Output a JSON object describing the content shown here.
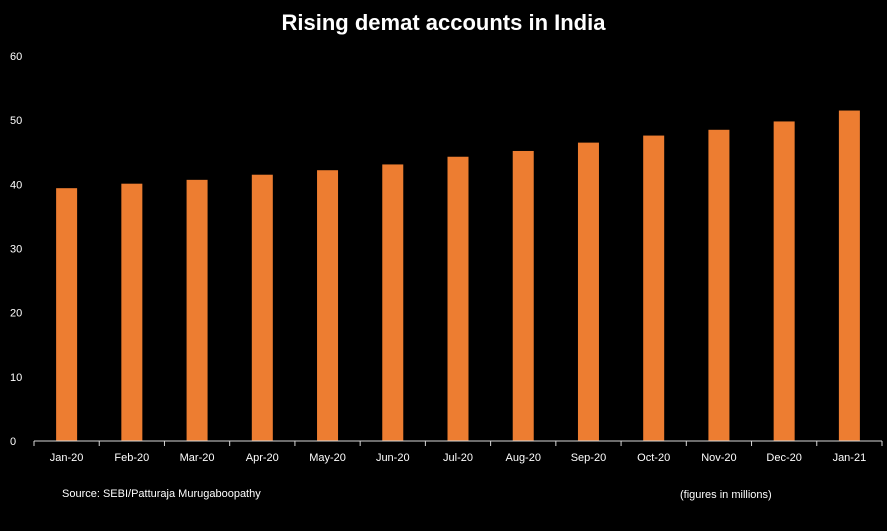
{
  "chart_data": {
    "type": "bar",
    "title": "Rising demat accounts in India",
    "categories": [
      "Jan-20",
      "Feb-20",
      "Mar-20",
      "Apr-20",
      "May-20",
      "Jun-20",
      "Jul-20",
      "Aug-20",
      "Sep-20",
      "Oct-20",
      "Nov-20",
      "Dec-20",
      "Jan-21"
    ],
    "values": [
      39.4,
      40.1,
      40.7,
      41.5,
      42.2,
      43.1,
      44.3,
      45.2,
      46.5,
      47.6,
      48.5,
      49.8,
      51.5
    ],
    "ylim": [
      0,
      60
    ],
    "yticks": [
      0,
      10,
      20,
      30,
      40,
      50,
      60
    ],
    "grid": false,
    "xlabel": "",
    "ylabel": "",
    "bar_color": "#ed7d31",
    "background": "#000000",
    "source_note": "Source: SEBI/Patturaja Murugaboopathy",
    "units_note": "(figures in millions)"
  }
}
